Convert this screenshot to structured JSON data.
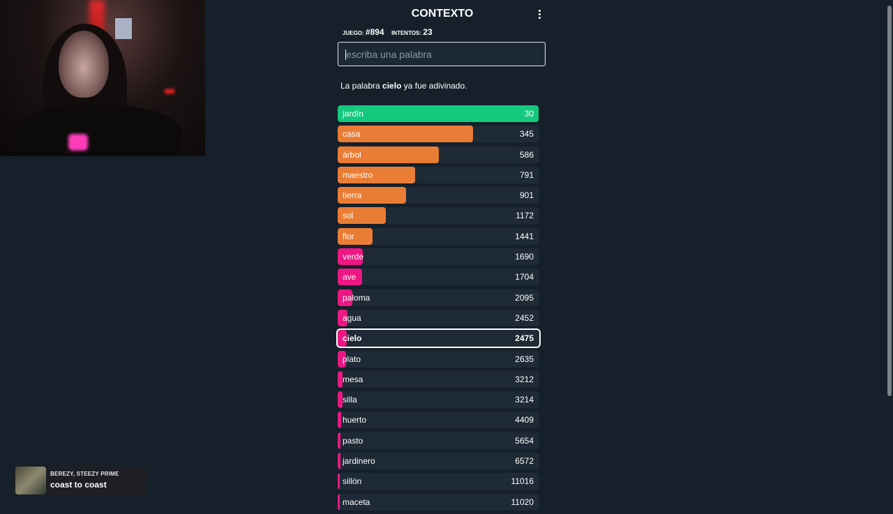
{
  "app": {
    "title": "CONTEXTO",
    "game_label": "JUEGO:",
    "game_value": "#894",
    "attempts_label": "INTENTOS:",
    "attempts_value": "23"
  },
  "search": {
    "placeholder": "escriba una palabra",
    "value": ""
  },
  "message": {
    "prefix": "La palabra ",
    "word": "cielo",
    "suffix": " ya fue adivinado."
  },
  "colors": {
    "green": "#14c97d",
    "orange": "#ea7d35",
    "pink": "#ec1782",
    "row_bg": "#1e2a35",
    "page_bg": "#15202b"
  },
  "guesses": [
    {
      "word": "jardín",
      "rank": "30",
      "color": "green",
      "fill": 0.997
    },
    {
      "word": "casa",
      "rank": "345",
      "color": "orange",
      "fill": 0.67
    },
    {
      "word": "árbol",
      "rank": "586",
      "color": "orange",
      "fill": 0.5
    },
    {
      "word": "maestro",
      "rank": "791",
      "color": "orange",
      "fill": 0.385
    },
    {
      "word": "tierra",
      "rank": "901",
      "color": "orange",
      "fill": 0.338
    },
    {
      "word": "sol",
      "rank": "1172",
      "color": "orange",
      "fill": 0.24
    },
    {
      "word": "flor",
      "rank": "1441",
      "color": "orange",
      "fill": 0.173
    },
    {
      "word": "verde",
      "rank": "1690",
      "color": "pink",
      "fill": 0.126
    },
    {
      "word": "ave",
      "rank": "1704",
      "color": "pink",
      "fill": 0.121
    },
    {
      "word": "paloma",
      "rank": "2095",
      "color": "pink",
      "fill": 0.073
    },
    {
      "word": "agua",
      "rank": "2452",
      "color": "pink",
      "fill": 0.048
    },
    {
      "word": "cielo",
      "rank": "2475",
      "color": "pink",
      "fill": 0.046,
      "current": true
    },
    {
      "word": "plato",
      "rank": "2635",
      "color": "pink",
      "fill": 0.04
    },
    {
      "word": "mesa",
      "rank": "3212",
      "color": "pink",
      "fill": 0.025
    },
    {
      "word": "silla",
      "rank": "3214",
      "color": "pink",
      "fill": 0.025
    },
    {
      "word": "huerto",
      "rank": "4409",
      "color": "pink",
      "fill": 0.018
    },
    {
      "word": "pasto",
      "rank": "5654",
      "color": "pink",
      "fill": 0.015
    },
    {
      "word": "jardinero",
      "rank": "6572",
      "color": "pink",
      "fill": 0.013
    },
    {
      "word": "sillón",
      "rank": "11016",
      "color": "pink",
      "fill": 0.01
    },
    {
      "word": "maceta",
      "rank": "11020",
      "color": "pink",
      "fill": 0.01
    }
  ],
  "music": {
    "artist": "BEREZY, STEEZY PRIME",
    "title": "coast to coast"
  },
  "icons": {
    "menu": "more-vertical-icon",
    "music_art": "album-art"
  }
}
